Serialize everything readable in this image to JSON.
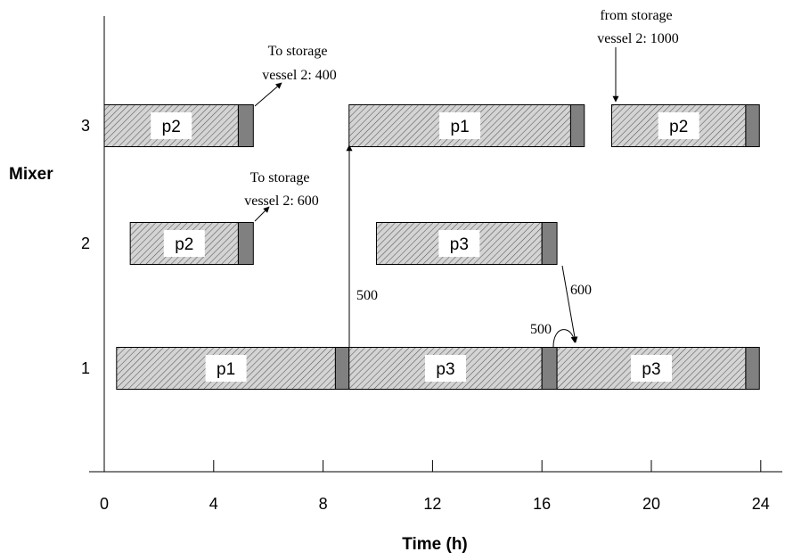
{
  "chart_data": {
    "type": "gantt",
    "xlabel": "Time (h)",
    "ylabel": "Mixer",
    "xlim": [
      0,
      24
    ],
    "x_ticks": [
      "0",
      "4",
      "8",
      "12",
      "16",
      "20",
      "24"
    ],
    "y_ticks": [
      "1",
      "2",
      "3"
    ],
    "colors": {
      "bar_fill": "#d4d4d4",
      "hatch": "#555555",
      "cleaning": "#808080",
      "label_bg": "#ffffff"
    },
    "tasks": [
      {
        "mixer": 3,
        "label": "p2",
        "start": 0.0,
        "end": 4.9,
        "clean_end": 5.45
      },
      {
        "mixer": 3,
        "label": "p1",
        "start": 8.95,
        "end": 17.05,
        "clean_end": 17.55
      },
      {
        "mixer": 3,
        "label": "p2",
        "start": 18.55,
        "end": 23.45,
        "clean_end": 23.95
      },
      {
        "mixer": 2,
        "label": "p2",
        "start": 0.95,
        "end": 4.9,
        "clean_end": 5.45
      },
      {
        "mixer": 2,
        "label": "p3",
        "start": 9.95,
        "end": 16.0,
        "clean_end": 16.55
      },
      {
        "mixer": 1,
        "label": "p1",
        "start": 0.45,
        "end": 8.45,
        "clean_end": 8.95
      },
      {
        "mixer": 1,
        "label": "p3",
        "start": 8.95,
        "end": 16.0,
        "clean_end": 16.55
      },
      {
        "mixer": 1,
        "label": "p3",
        "start": 16.55,
        "end": 23.45,
        "clean_end": 23.95
      }
    ],
    "annotations": [
      {
        "id": "to_storage_400",
        "lines": [
          "To storage",
          "vessel 2: 400"
        ]
      },
      {
        "id": "to_storage_600",
        "lines": [
          "To storage",
          "vessel 2: 600"
        ]
      },
      {
        "id": "from_storage_1000",
        "lines": [
          "from storage",
          "vessel 2: 1000"
        ]
      },
      {
        "id": "transfer_500_vertical",
        "lines": [
          "500"
        ]
      },
      {
        "id": "transfer_600",
        "lines": [
          "600"
        ]
      },
      {
        "id": "transfer_500_loop",
        "lines": [
          "500"
        ]
      }
    ]
  }
}
